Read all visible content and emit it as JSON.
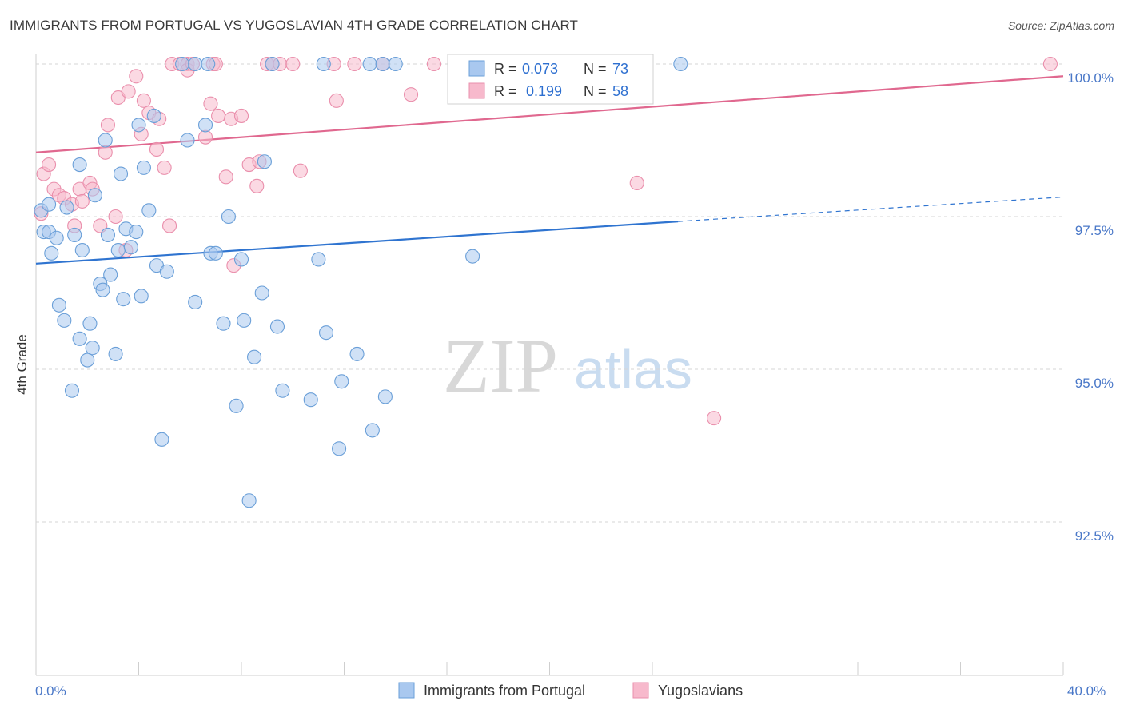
{
  "title": "IMMIGRANTS FROM PORTUGAL VS YUGOSLAVIAN 4TH GRADE CORRELATION CHART",
  "source": "Source: ZipAtlas.com",
  "watermark": {
    "zip": "ZIP",
    "atlas": "atlas"
  },
  "colors": {
    "blue_fill": "#a9c8ef",
    "blue_stroke": "#6a9fd8",
    "blue_line": "#2f74d0",
    "pink_fill": "#f7b9cc",
    "pink_stroke": "#ea8fac",
    "pink_line": "#e0688f",
    "tick_text": "#4a78c8",
    "grid": "#d6d6d6"
  },
  "legend": {
    "rows": [
      {
        "r_label": "R = ",
        "r_value": "0.073",
        "n_label": "N = ",
        "n_value": "73"
      },
      {
        "r_label": "R = ",
        "r_value": "0.199",
        "n_label": "N = ",
        "n_value": "58"
      }
    ]
  },
  "chart_data": {
    "type": "scatter",
    "ylabel": "4th Grade",
    "x_ticks": [
      "0.0%",
      "40.0%"
    ],
    "y_ticks": [
      "100.0%",
      "97.5%",
      "95.0%",
      "92.5%"
    ],
    "xlim": [
      0,
      40
    ],
    "ylim": [
      90.0,
      100.2
    ],
    "y_tick_values": [
      100.0,
      97.5,
      95.0,
      92.5
    ],
    "series": [
      {
        "name": "Immigrants from Portugal",
        "color": "#a9c8ef",
        "trend": {
          "x0": 0,
          "y0": 96.73,
          "x1": 25,
          "y1": 97.42,
          "x_dash_end": 40,
          "y_dash_end": 97.82
        },
        "points": [
          [
            0.2,
            97.6
          ],
          [
            0.3,
            97.25
          ],
          [
            0.5,
            97.7
          ],
          [
            0.5,
            97.25
          ],
          [
            0.6,
            96.9
          ],
          [
            0.8,
            97.15
          ],
          [
            0.9,
            96.05
          ],
          [
            1.1,
            95.8
          ],
          [
            1.2,
            97.65
          ],
          [
            1.4,
            94.65
          ],
          [
            1.5,
            97.2
          ],
          [
            1.7,
            98.35
          ],
          [
            1.7,
            95.5
          ],
          [
            1.8,
            96.95
          ],
          [
            2.0,
            95.15
          ],
          [
            2.1,
            95.75
          ],
          [
            2.2,
            95.35
          ],
          [
            2.3,
            97.85
          ],
          [
            2.5,
            96.4
          ],
          [
            2.6,
            96.3
          ],
          [
            2.7,
            98.75
          ],
          [
            2.8,
            97.2
          ],
          [
            2.9,
            96.55
          ],
          [
            3.1,
            95.25
          ],
          [
            3.2,
            96.95
          ],
          [
            3.3,
            98.2
          ],
          [
            3.4,
            96.15
          ],
          [
            3.5,
            97.3
          ],
          [
            3.7,
            97.0
          ],
          [
            3.9,
            97.25
          ],
          [
            4.0,
            99.0
          ],
          [
            4.1,
            96.2
          ],
          [
            4.2,
            98.3
          ],
          [
            4.4,
            97.6
          ],
          [
            4.6,
            99.15
          ],
          [
            4.7,
            96.7
          ],
          [
            4.9,
            93.85
          ],
          [
            5.1,
            96.6
          ],
          [
            5.7,
            100.0
          ],
          [
            5.9,
            98.75
          ],
          [
            6.2,
            100.0
          ],
          [
            6.2,
            96.1
          ],
          [
            6.6,
            99.0
          ],
          [
            6.7,
            100.0
          ],
          [
            6.8,
            96.9
          ],
          [
            7.0,
            96.9
          ],
          [
            7.3,
            95.75
          ],
          [
            7.5,
            97.5
          ],
          [
            7.8,
            94.4
          ],
          [
            8.0,
            96.8
          ],
          [
            8.1,
            95.8
          ],
          [
            8.3,
            92.85
          ],
          [
            8.5,
            95.2
          ],
          [
            8.8,
            96.25
          ],
          [
            8.9,
            98.4
          ],
          [
            9.2,
            100.0
          ],
          [
            9.4,
            95.7
          ],
          [
            9.6,
            94.65
          ],
          [
            10.7,
            94.5
          ],
          [
            11.0,
            96.8
          ],
          [
            11.2,
            100.0
          ],
          [
            11.3,
            95.6
          ],
          [
            11.8,
            93.7
          ],
          [
            11.9,
            94.8
          ],
          [
            12.5,
            95.25
          ],
          [
            13.0,
            100.0
          ],
          [
            13.1,
            94.0
          ],
          [
            13.5,
            100.0
          ],
          [
            13.6,
            94.55
          ],
          [
            14.0,
            100.0
          ],
          [
            16.7,
            100.0
          ],
          [
            17.0,
            96.85
          ],
          [
            25.1,
            100.0
          ]
        ]
      },
      {
        "name": "Yugoslavians",
        "color": "#f7b9cc",
        "trend": {
          "x0": 0,
          "y0": 98.55,
          "x1": 40,
          "y1": 99.8
        },
        "points": [
          [
            0.2,
            97.55
          ],
          [
            0.3,
            98.2
          ],
          [
            0.5,
            98.35
          ],
          [
            0.7,
            97.95
          ],
          [
            0.9,
            97.85
          ],
          [
            1.1,
            97.8
          ],
          [
            1.4,
            97.7
          ],
          [
            1.5,
            97.35
          ],
          [
            1.7,
            97.95
          ],
          [
            1.8,
            97.75
          ],
          [
            2.1,
            98.05
          ],
          [
            2.2,
            97.95
          ],
          [
            2.5,
            97.35
          ],
          [
            2.7,
            98.55
          ],
          [
            2.8,
            99.0
          ],
          [
            3.1,
            97.5
          ],
          [
            3.2,
            99.45
          ],
          [
            3.5,
            96.95
          ],
          [
            3.6,
            99.55
          ],
          [
            3.9,
            99.8
          ],
          [
            4.1,
            98.85
          ],
          [
            4.2,
            99.4
          ],
          [
            4.4,
            99.2
          ],
          [
            4.7,
            98.6
          ],
          [
            4.8,
            99.1
          ],
          [
            5.0,
            98.3
          ],
          [
            5.2,
            97.35
          ],
          [
            5.3,
            100.0
          ],
          [
            5.6,
            100.0
          ],
          [
            5.9,
            100.0
          ],
          [
            5.9,
            99.9
          ],
          [
            6.1,
            100.0
          ],
          [
            6.6,
            98.8
          ],
          [
            6.8,
            99.35
          ],
          [
            6.9,
            100.0
          ],
          [
            7.0,
            100.0
          ],
          [
            7.1,
            99.15
          ],
          [
            7.4,
            98.15
          ],
          [
            7.6,
            99.1
          ],
          [
            7.7,
            96.7
          ],
          [
            8.0,
            99.15
          ],
          [
            8.3,
            98.35
          ],
          [
            8.6,
            98.0
          ],
          [
            8.7,
            98.4
          ],
          [
            9.0,
            100.0
          ],
          [
            9.2,
            100.0
          ],
          [
            9.5,
            100.0
          ],
          [
            10.0,
            100.0
          ],
          [
            10.3,
            98.25
          ],
          [
            11.6,
            100.0
          ],
          [
            11.7,
            99.4
          ],
          [
            12.4,
            100.0
          ],
          [
            13.5,
            100.0
          ],
          [
            14.6,
            99.5
          ],
          [
            15.5,
            100.0
          ],
          [
            23.4,
            98.05
          ],
          [
            26.4,
            94.2
          ],
          [
            39.5,
            100.0
          ]
        ]
      }
    ],
    "legend_position": "top-center",
    "grid": "horizontal-dashed"
  }
}
